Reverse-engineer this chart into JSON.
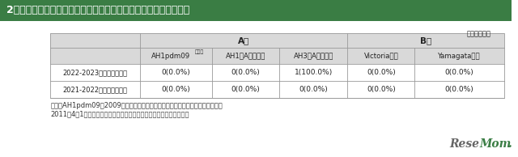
{
  "title_num": "2",
  "title_text": "インフルエンザウイルス検出状況（感染症発生動向調査事業）",
  "unit_text": "（単位：件）",
  "header_bg": "#3a7d44",
  "subheader_bg": "#d9d9d9",
  "col_group_A": "A型",
  "col_group_B": "B型",
  "col_headers_line1": [
    "AH1pdm09",
    "AH1（Aソ連型）",
    "AH3（A香港型）",
    "Victoria系統",
    "Yamagata系統"
  ],
  "col_header_note": "【注】",
  "row_headers": [
    "2022-2023年シーズン累計",
    "2021-2022年シーズン累計"
  ],
  "data": [
    [
      "0(0.0%)",
      "0(0.0%)",
      "1(100.0%)",
      "0(0.0%)",
      "0(0.0%)"
    ],
    [
      "0(0.0%)",
      "0(0.0%)",
      "0(0.0%)",
      "0(0.0%)",
      "0(0.0%)"
    ]
  ],
  "footnote1": "【注】AH1pdm09：2009年に新型インフルエンザと呼ばれて流行したワイルス。",
  "footnote2": "2011年4月1日から季節性インフルエンザとして位置づけられている。",
  "title_color": "#ffffff",
  "body_bg": "#ffffff",
  "line_color": "#999999",
  "text_color": "#222222",
  "footnote_color": "#333333",
  "resemom_gray": "#666666",
  "resemom_green": "#3a7d44"
}
